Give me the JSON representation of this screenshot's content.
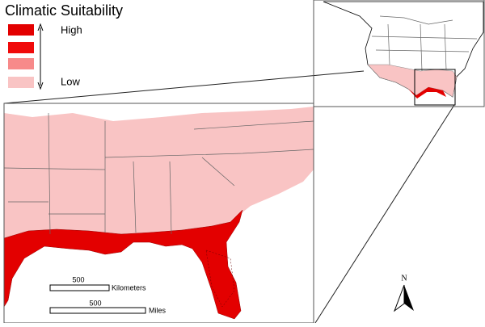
{
  "legend": {
    "title": "Climatic Suitability",
    "high_label": "High",
    "low_label": "Low"
  },
  "scale_bars": [
    {
      "value_label": "500",
      "unit": "Kilometers"
    },
    {
      "value_label": "500",
      "unit": "Miles"
    }
  ],
  "north_arrow": {
    "label": "N"
  }
}
